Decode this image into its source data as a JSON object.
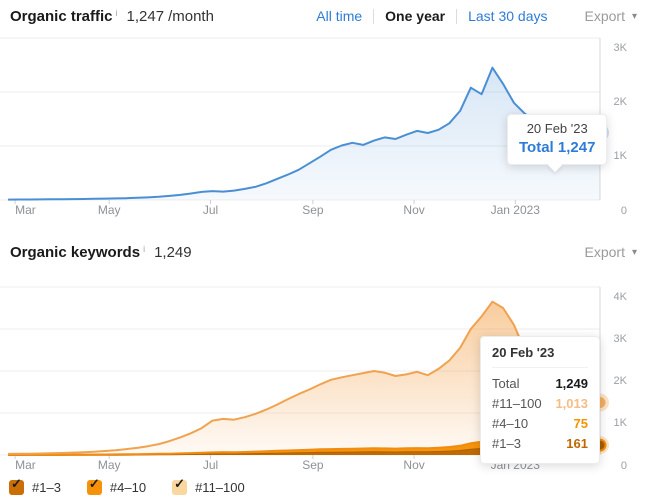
{
  "traffic_section": {
    "title": "Organic traffic",
    "info_icon": "i",
    "value": "1,247",
    "value_suffix": "/month",
    "tabs": [
      {
        "label": "All time",
        "active": false
      },
      {
        "label": "One year",
        "active": true
      },
      {
        "label": "Last 30 days",
        "active": false
      }
    ],
    "export": {
      "label": "Export",
      "caret": "▾"
    },
    "tooltip": {
      "date": "20 Feb '23",
      "text": "Total 1,247",
      "label": "Total",
      "value": "1,247",
      "value_color": "#2e7cd6"
    }
  },
  "keywords_section": {
    "title": "Organic keywords",
    "info_icon": "i",
    "value": "1,249",
    "export": {
      "label": "Export",
      "caret": "▾"
    },
    "tooltip": {
      "date": "20 Feb '23",
      "rows": [
        {
          "label": "Total",
          "value": "1,249",
          "color": "#1a1a1a"
        },
        {
          "label": "#11–100",
          "value": "1,013",
          "color": "#f5bd85"
        },
        {
          "label": "#4–10",
          "value": "75",
          "color": "#f59300"
        },
        {
          "label": "#1–3",
          "value": "161",
          "color": "#c06800"
        }
      ]
    },
    "legend": [
      {
        "label": "#1–3",
        "checked": true,
        "check": "✓",
        "color": "#c96f05"
      },
      {
        "label": "#4–10",
        "checked": true,
        "check": "✓",
        "color": "#f69209"
      },
      {
        "label": "#11–100",
        "checked": true,
        "check": "✓",
        "color": "#fbd7a0"
      }
    ]
  },
  "chart_data": [
    {
      "type": "area",
      "title": "Organic traffic",
      "xlabel": "",
      "ylabel": "",
      "x_ticks": [
        "Mar",
        "May",
        "Jul",
        "Sep",
        "Nov",
        "Jan 2023"
      ],
      "y_ticks": [
        "3K",
        "2K",
        "1K",
        "0"
      ],
      "ylim": [
        0,
        3000
      ],
      "grid": true,
      "stacked": false,
      "line_color": "#4a8fd4",
      "series": [
        {
          "name": "Total traffic",
          "color": "#4a8fd4",
          "values": [
            8,
            9,
            10,
            12,
            14,
            15,
            17,
            19,
            22,
            26,
            30,
            34,
            40,
            48,
            60,
            75,
            95,
            120,
            150,
            165,
            155,
            175,
            205,
            245,
            310,
            390,
            470,
            560,
            680,
            800,
            930,
            1010,
            1060,
            1020,
            1100,
            1160,
            1130,
            1210,
            1280,
            1240,
            1300,
            1420,
            1650,
            2080,
            1960,
            2450,
            2150,
            1800,
            1600,
            1480,
            1400,
            1350,
            1320,
            1300,
            1280,
            1247
          ]
        }
      ],
      "endpoint": {
        "date": "20 Feb '23",
        "label": "Total",
        "value": 1247
      }
    },
    {
      "type": "area",
      "title": "Organic keywords",
      "xlabel": "",
      "ylabel": "",
      "x_ticks": [
        "Mar",
        "May",
        "Jul",
        "Sep",
        "Nov",
        "Jan 2023"
      ],
      "y_ticks": [
        "4K",
        "3K",
        "2K",
        "1K",
        "0"
      ],
      "ylim": [
        0,
        4000
      ],
      "grid": true,
      "stacked": true,
      "series": [
        {
          "name": "#1–3",
          "color": "#b26100",
          "values": [
            1,
            1,
            2,
            2,
            3,
            3,
            4,
            5,
            6,
            7,
            8,
            10,
            12,
            14,
            16,
            18,
            21,
            25,
            30,
            35,
            38,
            36,
            40,
            45,
            50,
            55,
            60,
            65,
            70,
            75,
            78,
            80,
            82,
            85,
            88,
            86,
            84,
            88,
            90,
            88,
            95,
            105,
            120,
            150,
            170,
            160,
            150,
            140,
            130,
            125,
            130,
            140,
            150,
            155,
            158,
            161
          ]
        },
        {
          "name": "#4–10",
          "color": "#f28c0f",
          "values": [
            1,
            1,
            1,
            2,
            2,
            2,
            3,
            3,
            4,
            5,
            6,
            7,
            8,
            10,
            12,
            14,
            17,
            20,
            24,
            28,
            30,
            29,
            32,
            36,
            40,
            44,
            48,
            52,
            56,
            60,
            63,
            65,
            67,
            70,
            72,
            70,
            68,
            72,
            74,
            72,
            78,
            85,
            100,
            130,
            145,
            135,
            120,
            110,
            100,
            95,
            90,
            85,
            80,
            78,
            76,
            75
          ]
        },
        {
          "name": "#11–100",
          "color": "#f0a24e",
          "values": [
            23,
            26,
            29,
            32,
            35,
            43,
            49,
            58,
            68,
            83,
            101,
            123,
            150,
            186,
            232,
            298,
            382,
            475,
            586,
            757,
            792,
            775,
            828,
            899,
            990,
            1101,
            1222,
            1333,
            1434,
            1545,
            1649,
            1705,
            1751,
            1795,
            1840,
            1804,
            1728,
            1760,
            1816,
            1740,
            1877,
            2060,
            2330,
            2720,
            2985,
            3355,
            3230,
            2850,
            2270,
            1880,
            1580,
            1375,
            1220,
            1117,
            1046,
            1013
          ]
        }
      ],
      "endpoint": {
        "date": "20 Feb '23",
        "total": 1249,
        "rank_11_100": 1013,
        "rank_4_10": 75,
        "rank_1_3": 161
      }
    }
  ]
}
